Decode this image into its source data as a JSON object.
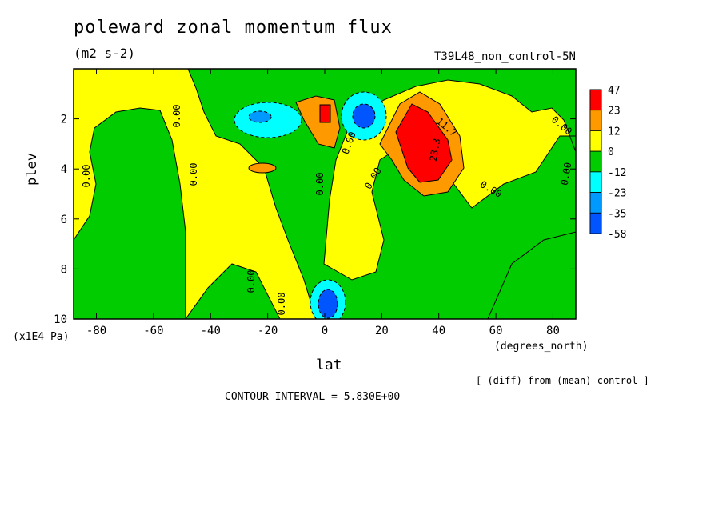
{
  "chart_data": {
    "type": "heatmap",
    "title": "poleward zonal momentum flux",
    "units": "(m2 s-2)",
    "run_label": "T39L48_non_control-5N",
    "xlabel": "lat",
    "x_units": "(degrees_north)",
    "ylabel": "plev",
    "y_units": "(x1E4 Pa)",
    "xlim": [
      -88,
      88
    ],
    "ylim": [
      10,
      0
    ],
    "x_ticks": [
      -80,
      -60,
      -40,
      -20,
      0,
      20,
      40,
      60,
      80
    ],
    "y_ticks": [
      2,
      4,
      6,
      8,
      10
    ],
    "colorbar_levels": [
      47,
      23,
      12,
      0,
      -12,
      -23,
      -35,
      -58
    ],
    "colorbar_colors": [
      "#ff0000",
      "#ff9900",
      "#ffff00",
      "#00cc00",
      "#00ffff",
      "#0099ff",
      "#0055ff"
    ],
    "contour_labels": [
      "0.00",
      "0.00",
      "0.00",
      "0.00",
      "0.00",
      "0.00",
      "0.00",
      "0.00",
      "0.00",
      "0.00",
      "0.00",
      "11.7",
      "23.3"
    ],
    "features": [
      {
        "lat": 33,
        "plev": 2.9,
        "value": 45
      },
      {
        "lat": 0,
        "plev": 2.0,
        "value": 40
      },
      {
        "lat": 12,
        "plev": 2.0,
        "value": -52
      },
      {
        "lat": -22,
        "plev": 2.1,
        "value": -28
      },
      {
        "lat": 1,
        "plev": 9.5,
        "value": -50
      },
      {
        "lat": -22,
        "plev": 4.0,
        "value": 14
      }
    ],
    "diff_note": "[ (diff) from (mean) control ]",
    "contour_interval_text": "CONTOUR INTERVAL = 5.830E+00"
  }
}
